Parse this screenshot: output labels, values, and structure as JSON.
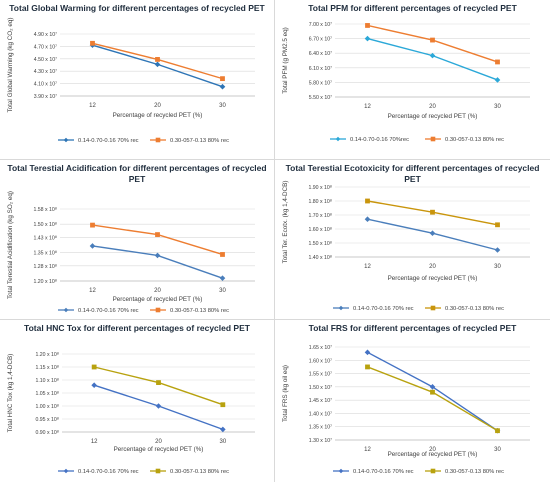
{
  "chart_data": [
    {
      "type": "line",
      "title": "Total Global Warming for different percentages of recycled PET",
      "ylabel": "Total Global Warming (kg CO₂ eq)",
      "xlabel": "Percentage of recycled PET (%)",
      "categories": [
        "12",
        "20",
        "30"
      ],
      "yticks": [
        "3.90 x 10⁷",
        "4.10 x 10⁷",
        "4.30 x 10⁷",
        "4.50 x 10⁷",
        "4.70 x 10⁷",
        "4.90 x 10⁷"
      ],
      "ylim": [
        3.9,
        4.9
      ],
      "ytick_values": [
        3.9,
        4.1,
        4.3,
        4.5,
        4.7,
        4.9
      ],
      "series": [
        {
          "name": "0.14-0.70-0.16 70% rec",
          "values": [
            4.72,
            4.41,
            4.05
          ],
          "color": "#2e75b6",
          "marker": "diamond"
        },
        {
          "name": "0.30-057-0.13 80% rec",
          "values": [
            4.75,
            4.49,
            4.18
          ],
          "color": "#ed7d31",
          "marker": "square"
        }
      ]
    },
    {
      "type": "line",
      "title": "Total PFM for different percentages of recycled PET",
      "ylabel": "Total PFM (g PM2.5 eq)",
      "xlabel": "Percentage of recycled PET (%)",
      "categories": [
        "12",
        "20",
        "30"
      ],
      "yticks": [
        "5.50 x 10⁷",
        "5.80 x 10⁷",
        "6.10 x 10⁷",
        "6.40 x 10⁷",
        "6.70 x 10⁷",
        "7.00 x 10⁷"
      ],
      "ylim": [
        5.5,
        7.0
      ],
      "ytick_values": [
        5.5,
        5.8,
        6.1,
        6.4,
        6.7,
        7.0
      ],
      "series": [
        {
          "name": "0.14-0.70-0.16 70%rec",
          "values": [
            6.7,
            6.35,
            5.85
          ],
          "color": "#2ba8d8",
          "marker": "diamond"
        },
        {
          "name": "0.30-057-0.13 80% rec",
          "values": [
            6.97,
            6.67,
            6.22
          ],
          "color": "#ed7d31",
          "marker": "square"
        }
      ]
    },
    {
      "type": "line",
      "title": "Total Terestial Acidification for different percentages of recycled PET",
      "ylabel": "Total Terestial Acidification (kg SO₂ eq)",
      "xlabel": "Percentage of recycled PET (%)",
      "categories": [
        "12",
        "20",
        "30"
      ],
      "yticks": [
        "1.20 x 10⁸",
        "1.28 x 10⁸",
        "1.35 x 10⁸",
        "1.43 x 10⁸",
        "1.50 x 10⁸",
        "1.58 x 10⁸"
      ],
      "ylim": [
        1.2,
        1.58
      ],
      "ytick_values": [
        1.2,
        1.28,
        1.35,
        1.43,
        1.5,
        1.58
      ],
      "series": [
        {
          "name": "0.14-0.70-0.16 70% rec",
          "values": [
            1.385,
            1.335,
            1.215
          ],
          "color": "#4a7ebb",
          "marker": "diamond"
        },
        {
          "name": "0.30-057-0.13 80% rec",
          "values": [
            1.495,
            1.445,
            1.34
          ],
          "color": "#ed7d31",
          "marker": "square"
        }
      ]
    },
    {
      "type": "line",
      "title": "Total Terestial Ecotoxicity for different percentages of recycled PET",
      "ylabel": "Total Ter. Ecotx. (kg 1,4-DCB)",
      "xlabel": "Percentage of recycled PET (%)",
      "categories": [
        "12",
        "20",
        "30"
      ],
      "yticks": [
        "1.40 x 10⁸",
        "1.50 x 10⁸",
        "1.60 x 10⁸",
        "1.70 x 10⁸",
        "1.80 x 10⁸",
        "1.90 x 10⁸"
      ],
      "ylim": [
        1.4,
        1.9
      ],
      "ytick_values": [
        1.4,
        1.5,
        1.6,
        1.7,
        1.8,
        1.9
      ],
      "series": [
        {
          "name": "0.14-0.70-0.16 70% rec",
          "values": [
            1.67,
            1.57,
            1.45
          ],
          "color": "#4a7ebb",
          "marker": "diamond"
        },
        {
          "name": "0.30-057-0.13 80% rec",
          "values": [
            1.8,
            1.72,
            1.63
          ],
          "color": "#c9950c",
          "marker": "square"
        }
      ]
    },
    {
      "type": "line",
      "title": "Total HNC Tox for different percentages of recycled PET",
      "ylabel": "Total HNC Tox (kg 1,4-DCB)",
      "xlabel": "Percentage of recycled PET (%)",
      "categories": [
        "12",
        "20",
        "30"
      ],
      "yticks": [
        "0.90 x 10⁸",
        "0.95 x 10⁸",
        "1.00 x 10⁸",
        "1.05 x 10⁸",
        "1.10 x 10⁸",
        "1.15 x 10⁸",
        "1.20 x 10⁸"
      ],
      "ylim": [
        0.9,
        1.2
      ],
      "ytick_values": [
        0.9,
        0.95,
        1.0,
        1.05,
        1.1,
        1.15,
        1.2
      ],
      "series": [
        {
          "name": "0.14-0.70-0.16  70% rec",
          "values": [
            1.08,
            1.0,
            0.91
          ],
          "color": "#4472c4",
          "marker": "diamond"
        },
        {
          "name": "0.30-057-0.13  80% rec",
          "values": [
            1.15,
            1.09,
            1.005
          ],
          "color": "#b8a20f",
          "marker": "square"
        }
      ]
    },
    {
      "type": "line",
      "title": "Total FRS for different percentages of recycled PET",
      "ylabel": "Total FRS (kg oil eq)",
      "xlabel": "Percentage of recycled PET (%)",
      "categories": [
        "12",
        "20",
        "30"
      ],
      "yticks": [
        "1.30 x 10⁷",
        "1.35 x 10⁷",
        "1.40 x 10⁷",
        "1.45 x 10⁷",
        "1.50 x 10⁷",
        "1.55 x 10⁷",
        "1.60 x 10⁷",
        "1.65 x 10⁷"
      ],
      "ylim": [
        1.3,
        1.65
      ],
      "ytick_values": [
        1.3,
        1.35,
        1.4,
        1.45,
        1.5,
        1.55,
        1.6,
        1.65
      ],
      "series": [
        {
          "name": "0.14-0.70-0.16  70% rec",
          "values": [
            1.63,
            1.5,
            1.335
          ],
          "color": "#4472c4",
          "marker": "diamond"
        },
        {
          "name": "0.30-057-0.13  80% rec",
          "values": [
            1.575,
            1.48,
            1.335
          ],
          "color": "#b8a20f",
          "marker": "square"
        }
      ]
    }
  ]
}
